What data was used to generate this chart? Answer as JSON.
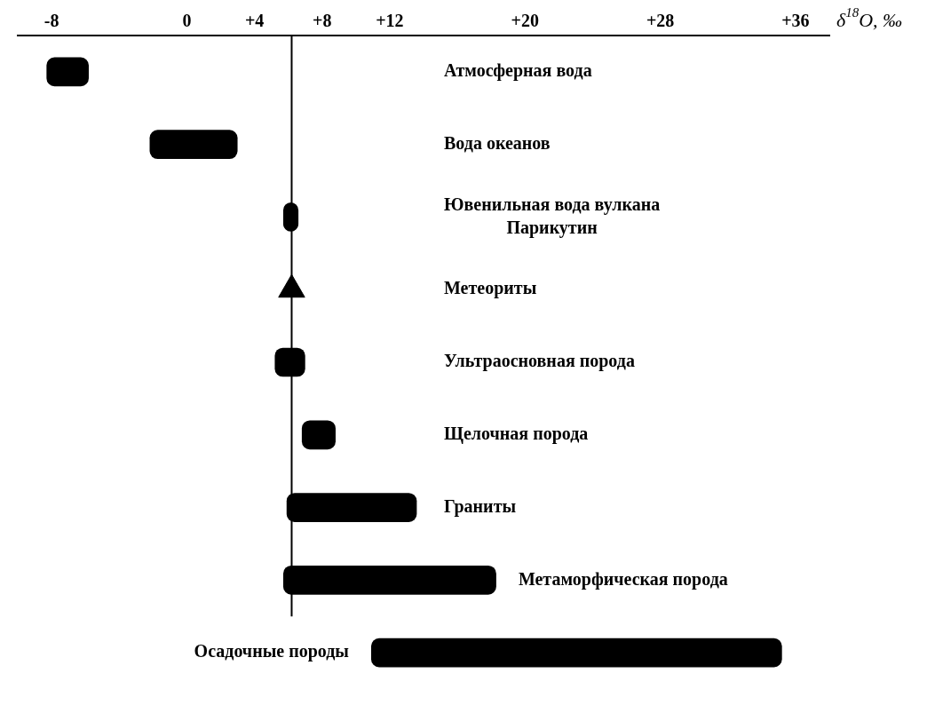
{
  "chart_data": {
    "type": "bar",
    "orientation": "horizontal",
    "xlabel": "δ$^{18}$O, ‰",
    "categories": [
      "Атмосферная вода",
      "Вода океанов",
      "Ювенильная вода вулкана\nПарикутин",
      "Метеориты",
      "Ультраосновная порода",
      "Щелочная порода",
      "Граниты",
      "Метаморфическая порода",
      "Осадочные породы"
    ],
    "series": [
      {
        "color": "#000000",
        "base": [
          -8.3,
          -2.2,
          5.7,
          null,
          5.2,
          6.8,
          5.9,
          5.7,
          10.9
        ],
        "values": [
          2.5,
          5.2,
          0.9,
          null,
          1.8,
          2.0,
          7.7,
          12.6,
          24.3
        ]
      },
      {
        "type": "scatter",
        "marker": "triangle",
        "color": "#000000",
        "values": [
          null,
          null,
          null,
          6.2,
          null,
          null,
          null,
          null,
          null
        ]
      }
    ],
    "xlim": [
      -10,
      38
    ],
    "xticks": [
      -8,
      0,
      {
        "value": 4,
        "label": "+4"
      },
      {
        "value": 8,
        "label": "+8"
      },
      {
        "value": 12,
        "label": "+12"
      },
      {
        "value": 20,
        "label": "+20"
      },
      {
        "value": 28,
        "label": "+28"
      },
      {
        "value": 36,
        "label": "+36"
      }
    ],
    "ref_lines": [
      {
        "axis": "x",
        "value": 6.2,
        "color": "#000000"
      }
    ],
    "grid": false,
    "legend": false
  }
}
